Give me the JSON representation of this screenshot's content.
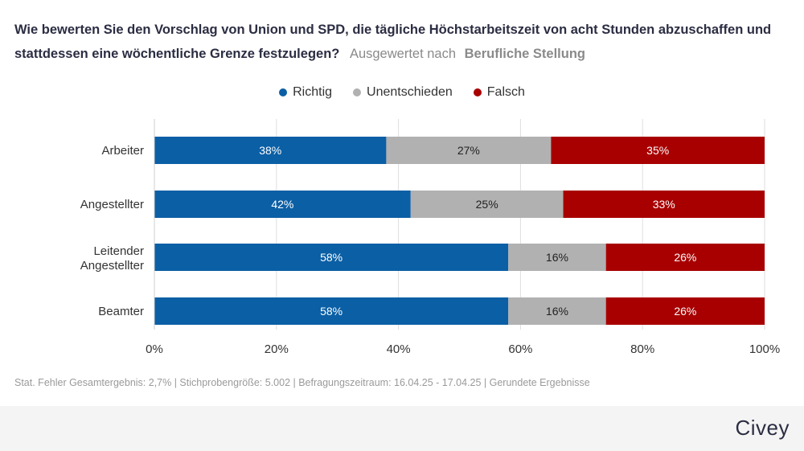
{
  "title": {
    "question": "Wie bewerten Sie den Vorschlag von Union und SPD, die tägliche Höchstarbeitszeit von acht Stunden abzuschaffen und stattdessen eine wöchentliche Grenze festzulegen?",
    "evaluated_by_label": "Ausgewertet nach",
    "evaluated_by_value": "Berufliche Stellung"
  },
  "footer": {
    "note": "Stat. Fehler Gesamtergebnis: 2,7% | Stichprobengröße: 5.002 | Befragungszeitraum: 16.04.25 - 17.04.25 | Gerundete Ergebnisse",
    "logo": "Civey"
  },
  "chart_data": {
    "type": "bar",
    "orientation": "horizontal",
    "stacked": true,
    "categories": [
      "Arbeiter",
      "Angestellter",
      "Leitender Angestellter",
      "Beamter"
    ],
    "series": [
      {
        "name": "Richtig",
        "color": "#0b5fa5",
        "label_color": "#ffffff",
        "values": [
          38,
          42,
          58,
          58
        ]
      },
      {
        "name": "Unentschieden",
        "color": "#b1b1b1",
        "label_color": "#222222",
        "values": [
          27,
          25,
          16,
          16
        ]
      },
      {
        "name": "Falsch",
        "color": "#a80000",
        "label_color": "#ffffff",
        "values": [
          35,
          33,
          26,
          26
        ]
      }
    ],
    "xlim": [
      0,
      100
    ],
    "x_ticks": [
      "0%",
      "20%",
      "40%",
      "60%",
      "80%",
      "100%"
    ],
    "value_suffix": "%",
    "legend_position": "top-center",
    "grid": true
  }
}
